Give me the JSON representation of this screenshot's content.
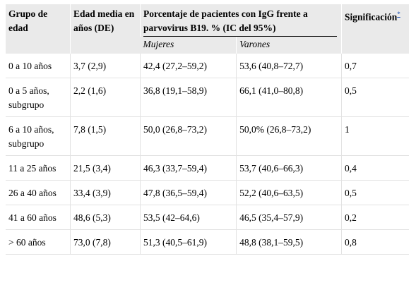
{
  "table": {
    "headers": {
      "age_group": "Grupo de edad",
      "mean_age": "Edad media en años (DE)",
      "percentage": "Porcentaje de pacientes con IgG frente a parvovirus B19. % (IC del 95%)",
      "significance": "Significación",
      "significance_ref": "*",
      "women": "Mujeres",
      "men": "Varones"
    },
    "rows": [
      {
        "group": "0 a 10 años",
        "mean_age": "3,7 (2,9)",
        "women": "42,4 (27,2–59,2)",
        "men": "53,6 (40,8–72,7)",
        "sig": "0,7"
      },
      {
        "group": "0 a 5 años, subgrupo",
        "mean_age": "2,2 (1,6)",
        "women": "36,8 (19,1–58,9)",
        "men": "66,1 (41,0–80,8)",
        "sig": "0,5"
      },
      {
        "group": "6 a 10 años, subgrupo",
        "mean_age": "7,8 (1,5)",
        "women": "50,0 (26,8–73,2)",
        "men": "50,0% (26,8–73,2)",
        "sig": "1"
      },
      {
        "group": "11 a 25 años",
        "mean_age": "21,5 (3,4)",
        "women": "46,3 (33,7–59,4)",
        "men": "53,7 (40,6–66,3)",
        "sig": "0,4"
      },
      {
        "group": "26 a 40 años",
        "mean_age": "33,4 (3,9)",
        "women": "47,8 (36,5–59,4)",
        "men": "52,2 (40,6–63,5)",
        "sig": "0,5"
      },
      {
        "group": "41 a 60 años",
        "mean_age": "48,6 (5,3)",
        "women": "53,5 (42–64,6)",
        "men": "46,5 (35,4–57,9)",
        "sig": "0,2"
      },
      {
        "group": "> 60 años",
        "mean_age": "73,0 (7,8)",
        "women": "51,3 (40,5–61,9)",
        "men": "48,8 (38,1–59,5)",
        "sig": "0,8"
      }
    ]
  }
}
